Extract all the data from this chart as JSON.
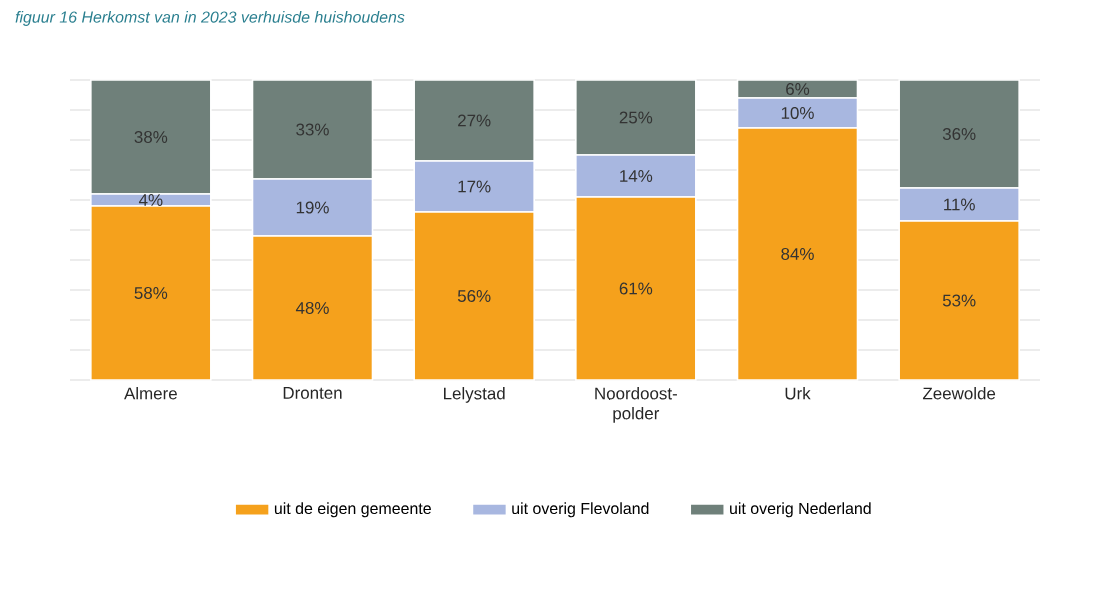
{
  "chart_data": {
    "type": "bar",
    "stacked": true,
    "title": "figuur 16   Herkomst van in 2023 verhuisde huishoudens",
    "categories": [
      "Almere",
      "Dronten",
      "Lelystad",
      "Noordoost-polder",
      "Urk",
      "Zeewolde"
    ],
    "series": [
      {
        "name": "uit de eigen gemeente",
        "color": "#f5a11c",
        "values": [
          58,
          48,
          56,
          61,
          84,
          53
        ],
        "value_labels": [
          "58%",
          "48%",
          "56%",
          "61%",
          "84%",
          "53%"
        ]
      },
      {
        "name": "uit overig Flevoland",
        "color": "#a8b7e0",
        "values": [
          4,
          19,
          17,
          14,
          10,
          11
        ],
        "value_labels": [
          "4%",
          "19%",
          "17%",
          "14%",
          "10%",
          "11%"
        ]
      },
      {
        "name": "uit overig Nederland",
        "color": "#6f807a",
        "values": [
          38,
          33,
          27,
          25,
          6,
          36
        ],
        "value_labels": [
          "38%",
          "33%",
          "27%",
          "25%",
          "6%",
          "36%"
        ]
      }
    ],
    "ylim": [
      0,
      100
    ],
    "yticks": [
      {
        "value": 0,
        "label": null
      },
      {
        "value": 10,
        "label": null
      },
      {
        "value": 20,
        "label": null
      },
      {
        "value": 30,
        "label": null
      },
      {
        "value": 40,
        "label": null
      },
      {
        "value": 50,
        "label": null
      },
      {
        "value": 60,
        "label": null
      },
      {
        "value": 70,
        "label": null
      },
      {
        "value": 80,
        "label": null
      },
      {
        "value": 90,
        "label": null
      },
      {
        "value": 100,
        "label": null
      }
    ],
    "tick_labels": "x",
    "grid": "y",
    "legend": "bottom"
  }
}
